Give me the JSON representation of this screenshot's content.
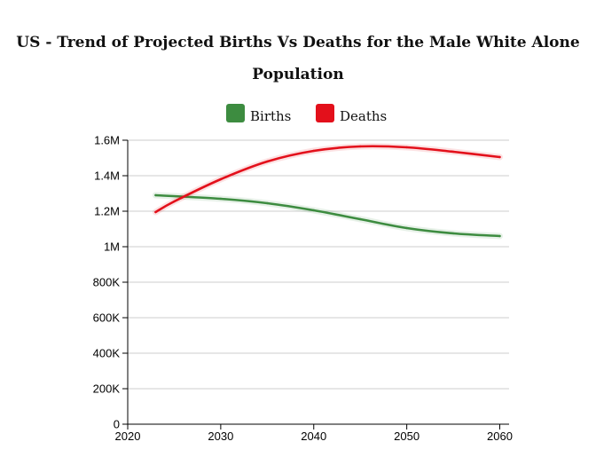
{
  "chart_data": {
    "type": "line",
    "title": "US - Trend of Projected Births Vs Deaths for the Male White Alone Population",
    "xlabel": "",
    "ylabel": "",
    "xlim": [
      2020,
      2061
    ],
    "ylim": [
      0,
      1600000
    ],
    "x_ticks": [
      2020,
      2030,
      2040,
      2050,
      2060
    ],
    "y_ticks": [
      0,
      200000,
      400000,
      600000,
      800000,
      1000000,
      1200000,
      1400000,
      1600000
    ],
    "y_tick_labels": [
      "0",
      "200K",
      "400K",
      "600K",
      "800K",
      "1M",
      "1.2M",
      "1.4M",
      "1.6M"
    ],
    "grid": "horizontal",
    "legend": "top-center",
    "series": [
      {
        "name": "Births",
        "color": "#3d8c40",
        "x": [
          2023,
          2030,
          2035,
          2040,
          2045,
          2050,
          2055,
          2060
        ],
        "values": [
          1290000,
          1270000,
          1245000,
          1205000,
          1155000,
          1105000,
          1075000,
          1060000
        ]
      },
      {
        "name": "Deaths",
        "color": "#e3101b",
        "x": [
          2023,
          2025,
          2030,
          2035,
          2040,
          2045,
          2050,
          2055,
          2060
        ],
        "values": [
          1195000,
          1255000,
          1380000,
          1480000,
          1540000,
          1565000,
          1560000,
          1535000,
          1505000
        ]
      }
    ]
  }
}
